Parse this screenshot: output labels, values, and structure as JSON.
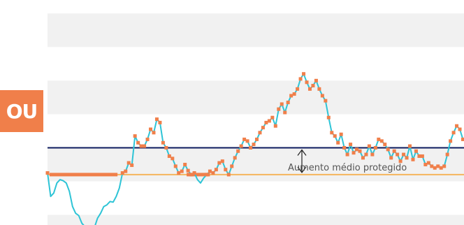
{
  "badge_text": "OU",
  "chart_data": {
    "type": "line",
    "annotation": "Aumento médio protegido",
    "ylim": [
      -1.5,
      5.2
    ],
    "grid_bands": [
      [
        4.8,
        3.8
      ],
      [
        2.8,
        1.8
      ],
      [
        0.8,
        -0.2
      ],
      [
        -1.2,
        -1.5
      ]
    ],
    "reference_lines": [
      {
        "name": "upper",
        "value": 0.8,
        "color": "#0d1b5e"
      },
      {
        "name": "lower",
        "value": 0.0,
        "color": "#f5b55c"
      }
    ],
    "x": [
      0,
      0.75,
      1.5,
      2.25,
      3,
      3.75,
      4.5,
      5.25,
      6,
      6.75,
      7.5,
      8.25,
      9,
      9.75,
      10.5,
      11.25,
      12,
      12.75,
      13.5,
      14.25,
      15,
      15.75,
      16.5,
      17.25,
      18,
      18.75,
      19.5,
      20.25,
      21,
      21.75,
      22.5,
      23.25,
      24,
      24.75,
      25.5,
      26.25,
      27,
      27.75,
      28.5,
      29.25,
      30,
      30.75,
      31.5,
      32.25,
      33,
      33.75,
      34.5,
      35.25,
      36,
      36.75,
      37.5,
      38.25,
      39,
      39.75,
      40.5,
      41.25,
      42,
      42.75,
      43.5,
      44.25,
      45,
      45.75,
      46.5,
      47.25,
      48,
      48.75,
      49.5,
      50.25,
      51,
      51.75,
      52.5,
      53.25,
      54,
      54.75,
      55.5,
      56.25,
      57,
      57.75,
      58.5,
      59.25,
      60,
      60.75,
      61.5,
      62.25,
      63,
      63.75,
      64.5,
      65.25,
      66,
      66.75,
      67.5,
      68.25,
      69,
      69.75,
      70.5,
      71.25,
      72,
      72.75,
      73.5,
      74.25,
      75,
      75.75,
      76.5,
      77.25,
      78,
      78.75,
      79.5,
      80.25,
      81,
      81.75,
      82.5,
      83.25,
      84,
      84.75,
      85.5,
      86.25,
      87,
      87.75,
      88.5,
      89.25,
      90,
      90.75,
      91.5,
      92.25,
      93,
      93.75,
      94.5,
      95.25,
      96,
      96.75,
      97.5,
      98.25,
      99,
      99.75
    ],
    "series": [
      {
        "color": "#2ec4d6",
        "marker_color": "#f07f4a",
        "values": [
          0.05,
          -0.65,
          -0.55,
          -0.25,
          -0.15,
          -0.18,
          -0.25,
          -0.5,
          -0.95,
          -1.15,
          -1.22,
          -1.45,
          -1.55,
          -1.65,
          -1.55,
          -1.58,
          -1.3,
          -1.15,
          -0.95,
          -0.9,
          -0.8,
          -0.82,
          -0.65,
          -0.4,
          0.05,
          0.1,
          0.35,
          0.28,
          1.15,
          0.95,
          0.85,
          0.85,
          1.05,
          1.35,
          1.25,
          1.65,
          1.55,
          0.95,
          0.8,
          0.55,
          0.48,
          0.25,
          0.05,
          0.1,
          0.3,
          0.12,
          0.0,
          0.05,
          -0.15,
          -0.25,
          -0.1,
          0.0,
          0.1,
          0.05,
          0.15,
          0.35,
          0.4,
          0.15,
          0.0,
          0.25,
          0.5,
          0.7,
          0.85,
          1.05,
          1.0,
          0.8,
          0.9,
          1.05,
          1.25,
          1.4,
          1.55,
          1.6,
          1.7,
          1.45,
          1.95,
          2.1,
          1.85,
          2.15,
          2.35,
          2.4,
          2.55,
          2.85,
          3.0,
          2.75,
          2.55,
          2.65,
          2.8,
          2.55,
          2.35,
          2.2,
          1.7,
          1.25,
          1.15,
          0.95,
          1.2,
          0.8,
          0.6,
          0.9,
          0.65,
          0.75,
          0.7,
          0.5,
          0.6,
          0.85,
          0.6,
          0.8,
          1.05,
          1.0,
          0.9,
          0.75,
          0.5,
          0.7,
          0.6,
          0.4,
          0.6,
          0.5,
          0.85,
          0.45,
          0.7,
          0.55,
          0.55,
          0.3,
          0.35,
          0.25,
          0.2,
          0.25,
          0.2,
          0.25,
          0.6,
          1.0,
          1.25,
          1.45,
          1.35,
          1.05
        ]
      },
      {
        "name": "lower-bound",
        "color": "#f07f4a",
        "x": [
          0.5,
          16.8
        ],
        "values": [
          0.0,
          0.0
        ]
      },
      {
        "name": "flat-segment",
        "color": "#f07f4a",
        "x": [
          33.4,
          39.0
        ],
        "values": [
          0.0,
          0.0
        ]
      }
    ]
  }
}
